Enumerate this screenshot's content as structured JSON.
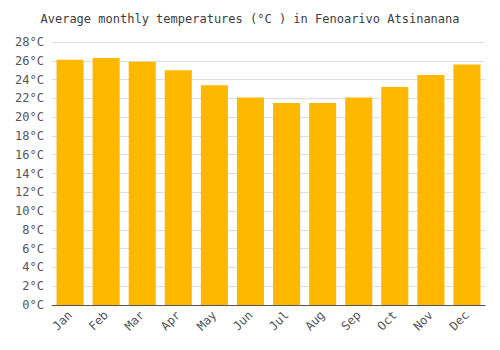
{
  "chart_data": {
    "type": "bar",
    "title": "Average monthly temperatures (°C ) in Fenoarivo Atsinanana",
    "categories": [
      "Jan",
      "Feb",
      "Mar",
      "Apr",
      "May",
      "Jun",
      "Jul",
      "Aug",
      "Sep",
      "Oct",
      "Nov",
      "Dec"
    ],
    "values": [
      26.1,
      26.3,
      25.9,
      25.0,
      23.4,
      22.1,
      21.5,
      21.5,
      22.1,
      23.2,
      24.5,
      25.6
    ],
    "color": "#FFB800",
    "ylim": [
      0,
      28
    ],
    "yticks": [
      {
        "value": 0,
        "label": "0°C"
      },
      {
        "value": 2,
        "label": "2°C"
      },
      {
        "value": 4,
        "label": "4°C"
      },
      {
        "value": 6,
        "label": "6°C"
      },
      {
        "value": 8,
        "label": "8°C"
      },
      {
        "value": 10,
        "label": "10°C"
      },
      {
        "value": 12,
        "label": "12°C"
      },
      {
        "value": 14,
        "label": "14°C"
      },
      {
        "value": 16,
        "label": "16°C"
      },
      {
        "value": 18,
        "label": "18°C"
      },
      {
        "value": 20,
        "label": "20°C"
      },
      {
        "value": 22,
        "label": "22°C"
      },
      {
        "value": 24,
        "label": "24°C"
      },
      {
        "value": 26,
        "label": "26°C"
      },
      {
        "value": 28,
        "label": "28°C"
      }
    ],
    "grid": true
  }
}
